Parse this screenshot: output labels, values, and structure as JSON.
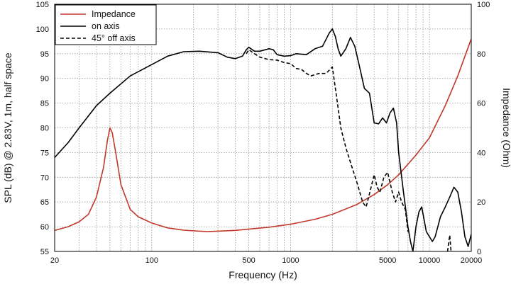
{
  "chart_data": {
    "type": "line",
    "title": "",
    "xlabel": "Frequency (Hz)",
    "ylabel": "SPL (dB) @ 2.83V, 1m, half space",
    "y2label": "Impedance (Ohm)",
    "xscale": "log",
    "xlim": [
      20,
      20000
    ],
    "ylim": [
      55,
      105
    ],
    "y2lim": [
      0,
      100
    ],
    "grid": true,
    "legend_position": "top-left",
    "x_tick_labels": [
      "20",
      "100",
      "500",
      "1000",
      "5000",
      "10000",
      "20000"
    ],
    "x_tick_values": [
      20,
      100,
      500,
      1000,
      5000,
      10000,
      20000
    ],
    "y_tick_values": [
      55,
      60,
      65,
      70,
      75,
      80,
      85,
      90,
      95,
      100,
      105
    ],
    "y2_tick_values": [
      0,
      20,
      40,
      60,
      80,
      100
    ],
    "series": [
      {
        "name": "Impedance",
        "axis": "right",
        "color": "#c0392b",
        "style": "solid",
        "points": [
          [
            20,
            8.5
          ],
          [
            25,
            10
          ],
          [
            30,
            12
          ],
          [
            35,
            15
          ],
          [
            40,
            22
          ],
          [
            45,
            34
          ],
          [
            48,
            45
          ],
          [
            50,
            50
          ],
          [
            52,
            48
          ],
          [
            55,
            40
          ],
          [
            60,
            27
          ],
          [
            70,
            17
          ],
          [
            80,
            14
          ],
          [
            100,
            11.5
          ],
          [
            130,
            9.5
          ],
          [
            170,
            8.6
          ],
          [
            250,
            8
          ],
          [
            400,
            8.5
          ],
          [
            700,
            9.8
          ],
          [
            1000,
            11
          ],
          [
            1500,
            13
          ],
          [
            2000,
            15
          ],
          [
            3000,
            19
          ],
          [
            4000,
            23
          ],
          [
            5000,
            27
          ],
          [
            6000,
            31
          ],
          [
            8000,
            39
          ],
          [
            10000,
            46
          ],
          [
            13000,
            59
          ],
          [
            16000,
            71
          ],
          [
            20000,
            86
          ]
        ]
      },
      {
        "name": "on axis",
        "axis": "left",
        "color": "#000000",
        "style": "solid",
        "points": [
          [
            20,
            74
          ],
          [
            25,
            77
          ],
          [
            30,
            80
          ],
          [
            40,
            84.5
          ],
          [
            50,
            87
          ],
          [
            70,
            90.5
          ],
          [
            100,
            92.8
          ],
          [
            130,
            94.5
          ],
          [
            170,
            95.4
          ],
          [
            220,
            95.5
          ],
          [
            300,
            95.2
          ],
          [
            350,
            94.3
          ],
          [
            400,
            94
          ],
          [
            450,
            94.5
          ],
          [
            480,
            95.8
          ],
          [
            500,
            96.3
          ],
          [
            550,
            95.5
          ],
          [
            600,
            95.5
          ],
          [
            700,
            96
          ],
          [
            750,
            95.8
          ],
          [
            800,
            94.8
          ],
          [
            900,
            94.5
          ],
          [
            1000,
            94.6
          ],
          [
            1100,
            95
          ],
          [
            1300,
            94.8
          ],
          [
            1500,
            96
          ],
          [
            1700,
            96.5
          ],
          [
            1900,
            99.2
          ],
          [
            2000,
            100
          ],
          [
            2100,
            98.5
          ],
          [
            2200,
            96
          ],
          [
            2300,
            94.5
          ],
          [
            2500,
            96
          ],
          [
            2700,
            98.3
          ],
          [
            2900,
            96.5
          ],
          [
            3100,
            93
          ],
          [
            3400,
            88
          ],
          [
            3700,
            87
          ],
          [
            4000,
            81
          ],
          [
            4300,
            80.8
          ],
          [
            4600,
            82
          ],
          [
            4900,
            81
          ],
          [
            5200,
            83
          ],
          [
            5500,
            84
          ],
          [
            5800,
            81
          ],
          [
            6000,
            75
          ],
          [
            6500,
            67
          ],
          [
            7000,
            60
          ],
          [
            7300,
            57
          ],
          [
            7600,
            55
          ],
          [
            8000,
            60
          ],
          [
            8400,
            63
          ],
          [
            8800,
            64
          ],
          [
            9500,
            59
          ],
          [
            10500,
            57
          ],
          [
            11000,
            58
          ],
          [
            12000,
            62
          ],
          [
            13000,
            64
          ],
          [
            14000,
            66
          ],
          [
            15000,
            68
          ],
          [
            16000,
            67
          ],
          [
            17000,
            63
          ],
          [
            18000,
            58
          ],
          [
            19000,
            56
          ],
          [
            20000,
            58.5
          ]
        ]
      },
      {
        "name": "45° off axis",
        "axis": "left",
        "color": "#000000",
        "style": "dashed",
        "points": [
          [
            480,
            95
          ],
          [
            500,
            95.8
          ],
          [
            550,
            95
          ],
          [
            600,
            94.3
          ],
          [
            700,
            93.8
          ],
          [
            800,
            93.7
          ],
          [
            900,
            93.2
          ],
          [
            1000,
            93
          ],
          [
            1100,
            92
          ],
          [
            1200,
            91.8
          ],
          [
            1300,
            91
          ],
          [
            1400,
            90.5
          ],
          [
            1600,
            91
          ],
          [
            1800,
            91
          ],
          [
            2000,
            92.3
          ],
          [
            2150,
            86
          ],
          [
            2300,
            80
          ],
          [
            2500,
            76
          ],
          [
            2700,
            73
          ],
          [
            3000,
            69
          ],
          [
            3300,
            65
          ],
          [
            3500,
            64
          ],
          [
            3800,
            68
          ],
          [
            4000,
            70.5
          ],
          [
            4200,
            68
          ],
          [
            4400,
            67
          ],
          [
            4700,
            70
          ],
          [
            5000,
            71
          ],
          [
            5400,
            67
          ],
          [
            5700,
            65
          ],
          [
            6000,
            67
          ],
          [
            6300,
            65
          ],
          [
            6700,
            63.5
          ],
          [
            7000,
            59
          ]
        ]
      },
      {
        "name": "",
        "axis": "left",
        "color": "#000000",
        "style": "dashed",
        "points": [
          [
            13500,
            55
          ],
          [
            14000,
            58.3
          ],
          [
            14300,
            55
          ]
        ]
      }
    ]
  }
}
